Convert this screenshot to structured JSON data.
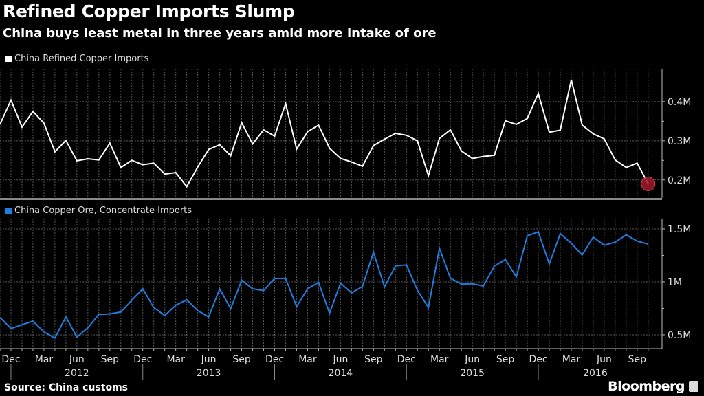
{
  "title": "Refined Copper Imports Slump",
  "subtitle": "China buys least metal in three years amid more intake of ore",
  "source": "Source: China customs",
  "brand": "Bloomberg",
  "colors": {
    "background": "#000000",
    "series1": "#ffffff",
    "series2": "#1f7fe0",
    "highlight": "#a3192b"
  },
  "chart_data": [
    {
      "type": "line",
      "legend": "China Refined Copper Imports",
      "legend_position": "top-left",
      "grid": true,
      "yaxis_side": "right",
      "ylim": [
        0.154,
        0.484
      ],
      "yticks": [
        {
          "value": 0.2,
          "label": "0.2M"
        },
        {
          "value": 0.3,
          "label": "0.3M"
        },
        {
          "value": 0.4,
          "label": "0.4M"
        }
      ],
      "yunit": "million",
      "start": "2011-11",
      "end": "2016-10",
      "highlight_last_point": true,
      "values": [
        0.342,
        0.404,
        0.335,
        0.375,
        0.345,
        0.272,
        0.301,
        0.249,
        0.254,
        0.251,
        0.294,
        0.232,
        0.25,
        0.239,
        0.243,
        0.215,
        0.219,
        0.183,
        0.233,
        0.278,
        0.29,
        0.262,
        0.346,
        0.292,
        0.328,
        0.312,
        0.395,
        0.279,
        0.323,
        0.34,
        0.281,
        0.255,
        0.246,
        0.235,
        0.288,
        0.304,
        0.319,
        0.314,
        0.3,
        0.211,
        0.306,
        0.328,
        0.274,
        0.255,
        0.26,
        0.263,
        0.351,
        0.342,
        0.357,
        0.421,
        0.322,
        0.327,
        0.456,
        0.34,
        0.318,
        0.305,
        0.251,
        0.232,
        0.243,
        0.19
      ]
    },
    {
      "type": "line",
      "legend": "China Copper Ore, Concentrate Imports",
      "legend_position": "top-left",
      "grid": true,
      "yaxis_side": "right",
      "ylim": [
        0.37,
        1.597
      ],
      "yticks": [
        {
          "value": 0.5,
          "label": "0.5M"
        },
        {
          "value": 1.0,
          "label": "1M"
        },
        {
          "value": 1.5,
          "label": "1.5M"
        }
      ],
      "yunit": "million",
      "start": "2011-11",
      "end": "2016-10",
      "values": [
        0.664,
        0.56,
        0.595,
        0.63,
        0.528,
        0.47,
        0.669,
        0.479,
        0.567,
        0.693,
        0.697,
        0.716,
        0.827,
        0.935,
        0.758,
        0.682,
        0.779,
        0.831,
        0.729,
        0.669,
        0.935,
        0.747,
        1.015,
        0.935,
        0.918,
        1.032,
        1.032,
        0.766,
        0.935,
        0.995,
        0.703,
        0.989,
        0.896,
        0.957,
        1.281,
        0.953,
        1.151,
        1.16,
        0.92,
        0.758,
        1.318,
        1.034,
        0.979,
        0.983,
        0.961,
        1.149,
        1.21,
        1.047,
        1.435,
        1.472,
        1.169,
        1.455,
        1.364,
        1.255,
        1.422,
        1.346,
        1.375,
        1.444,
        1.385,
        1.357
      ]
    }
  ],
  "xaxis": {
    "month_labels": [
      "Dec",
      "Mar",
      "Jun",
      "Sep",
      "Dec",
      "Mar",
      "Jun",
      "Sep",
      "Dec",
      "Mar",
      "Jun",
      "Sep",
      "Dec",
      "Mar",
      "Jun",
      "Sep",
      "Dec",
      "Mar",
      "Jun",
      "Sep"
    ],
    "year_labels": [
      "2012",
      "2013",
      "2014",
      "2015",
      "2016"
    ]
  }
}
